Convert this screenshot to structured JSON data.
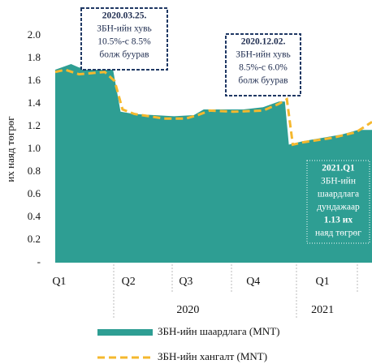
{
  "chart_data": {
    "type": "area",
    "y_label": "их наяд төгрөг",
    "ylim": [
      0,
      2.0
    ],
    "yticks": [
      {
        "value": 0,
        "label": "-"
      },
      0.2,
      0.4,
      0.6,
      0.8,
      {
        "value": 1.0,
        "label": "1.0"
      },
      1.2,
      1.4,
      1.6,
      1.8,
      {
        "value": 2.0,
        "label": "2.0"
      }
    ],
    "xlim": [
      0,
      16
    ],
    "xticks": [
      {
        "value": 0.2,
        "label": "Q1"
      },
      {
        "value": 3.7,
        "label": "Q2"
      },
      {
        "value": 6.6,
        "label": "Q3"
      },
      {
        "value": 10,
        "label": "Q4"
      },
      {
        "value": 13.5,
        "label": "Q1"
      }
    ],
    "year_labels": [
      {
        "value": 6.7,
        "label": "2020"
      },
      {
        "value": 13.5,
        "label": "2021"
      }
    ],
    "series": [
      {
        "name": "ЗБН-ийн шаардлага (MNT)",
        "color": "#2e9e93",
        "style": "area",
        "x": [
          0,
          0.8,
          1.2,
          2.9,
          3.3,
          4.0,
          5.0,
          6.0,
          7.0,
          7.5,
          8.5,
          9.5,
          10.5,
          11.3,
          11.6,
          11.8,
          12.5,
          13.5,
          14.5,
          15.3,
          16
        ],
        "values": [
          1.7,
          1.75,
          1.72,
          1.72,
          1.33,
          1.31,
          1.3,
          1.29,
          1.3,
          1.35,
          1.35,
          1.35,
          1.37,
          1.42,
          1.42,
          1.04,
          1.07,
          1.1,
          1.13,
          1.17,
          1.17
        ]
      },
      {
        "name": "ЗБН-ийн хангалт (MNT)",
        "color": "#f5b82e",
        "style": "dashed",
        "x": [
          0,
          0.5,
          1.2,
          2.5,
          3.0,
          3.4,
          4.0,
          5.5,
          6.6,
          7.2,
          7.8,
          9.0,
          10.5,
          11.3,
          11.7,
          12.0,
          12.5,
          14.0,
          15.2,
          16
        ],
        "values": [
          1.68,
          1.7,
          1.66,
          1.68,
          1.6,
          1.35,
          1.31,
          1.27,
          1.27,
          1.3,
          1.34,
          1.33,
          1.34,
          1.4,
          1.44,
          1.04,
          1.06,
          1.1,
          1.15,
          1.24
        ]
      }
    ],
    "annotations": [
      {
        "lines": [
          "2020.03.25.",
          "ЗБН-ийн хувь",
          "10.5%-с  8.5%",
          "болж буурав"
        ]
      },
      {
        "lines": [
          "2020.12.02.",
          "ЗБН-ийн хувь",
          "8.5%-с   6.0%",
          "болж   буурав"
        ]
      },
      {
        "lines": [
          "2021.Q1",
          "ЗБН-ийн",
          "шаардлага",
          "дундажаар",
          "1.13 их",
          "наяд төгрөг"
        ]
      }
    ]
  }
}
